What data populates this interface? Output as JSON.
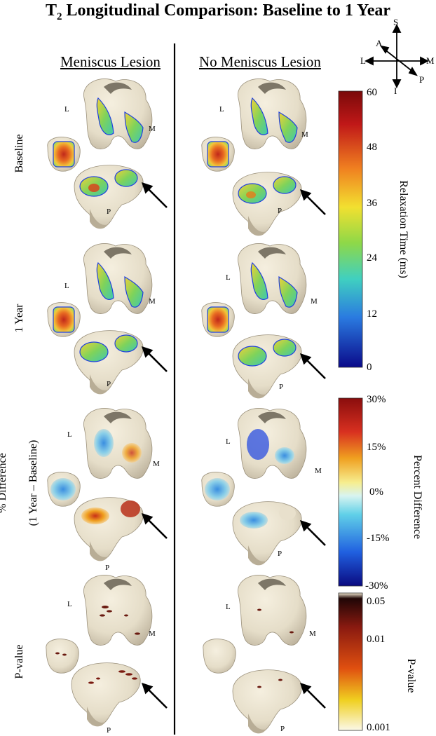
{
  "figure": {
    "title_main": "T",
    "title_sub": "2",
    "title_rest": " Longitudinal Comparison: Baseline to 1 Year",
    "columns": [
      "Meniscus Lesion",
      "No Meniscus Lesion"
    ],
    "rows": [
      "Baseline",
      "1 Year",
      "% Difference",
      "(1 Year – Baseline)",
      "P-value"
    ],
    "orientation": {
      "S": "S",
      "I": "I",
      "L": "L",
      "M": "M",
      "A": "A",
      "P": "P"
    },
    "knee_labels": {
      "L": "L",
      "M": "M",
      "P": "P"
    }
  },
  "colorbars": {
    "relaxation": {
      "label": "Relaxation Time (ms)",
      "ticks": [
        "60",
        "48",
        "36",
        "24",
        "12",
        "0"
      ]
    },
    "percent": {
      "label": "Percent Difference",
      "ticks": [
        "30%",
        "15%",
        "0%",
        "-15%",
        "-30%"
      ]
    },
    "pvalue": {
      "label": "P-value",
      "ticks": [
        "0.05",
        "0.01",
        "0.001"
      ]
    }
  }
}
